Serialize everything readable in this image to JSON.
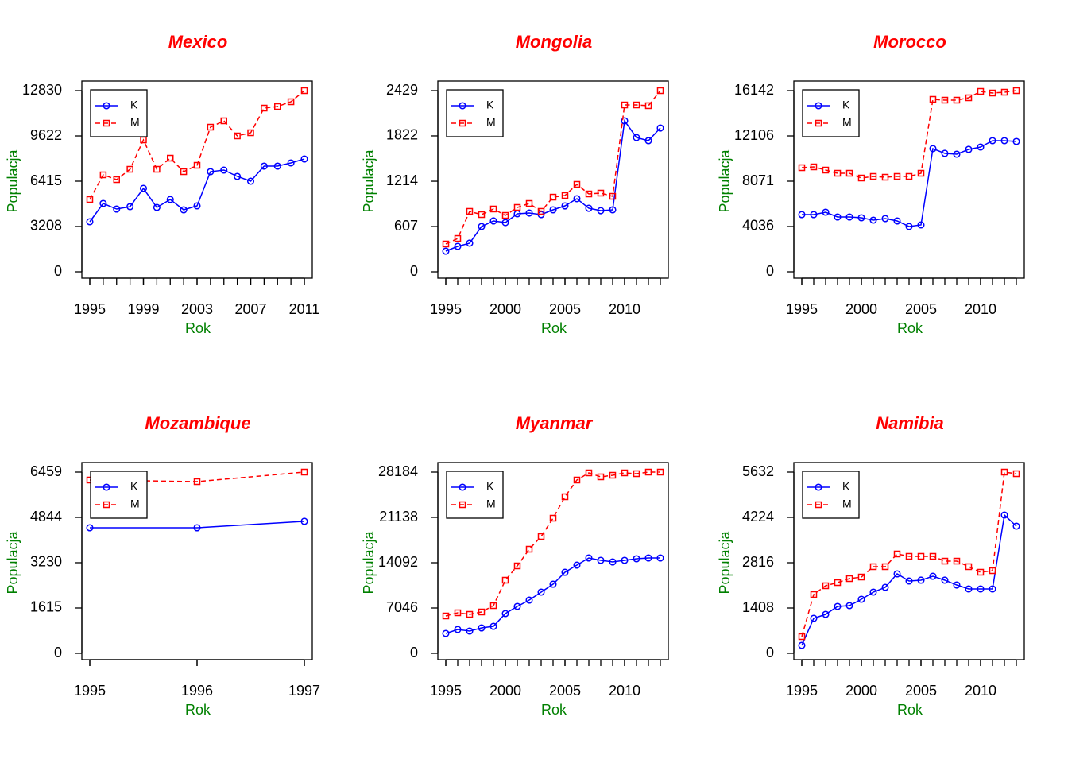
{
  "chart_data": [
    {
      "type": "line",
      "title": "Mexico",
      "xlabel": "Rok",
      "ylabel": "Populacja",
      "x": [
        1995,
        1996,
        1997,
        1998,
        1999,
        2000,
        2001,
        2002,
        2003,
        2004,
        2005,
        2006,
        2007,
        2008,
        2009,
        2010,
        2011
      ],
      "series": [
        {
          "name": "K",
          "color": "#0000ff",
          "values": [
            3545,
            4839,
            4445,
            4614,
            5908,
            4558,
            5121,
            4389,
            4670,
            7090,
            7203,
            6753,
            6415,
            7484,
            7484,
            7709,
            7990
          ]
        },
        {
          "name": "M",
          "color": "#ff0000",
          "values": [
            5121,
            6865,
            6527,
            7259,
            9341,
            7259,
            8047,
            7090,
            7540,
            10241,
            10692,
            9622,
            9847,
            11592,
            11704,
            12042,
            12830
          ]
        }
      ],
      "xlim": [
        1995,
        2011
      ],
      "xticks": [
        1995,
        1999,
        2003,
        2007,
        2011
      ],
      "ylim": [
        0,
        12830
      ],
      "yticks": [
        0,
        3208,
        6415,
        9622,
        12830
      ],
      "legend": "topleft"
    },
    {
      "type": "line",
      "title": "Mongolia",
      "xlabel": "Rok",
      "ylabel": "Populacja",
      "x": [
        1995,
        1996,
        1997,
        1998,
        1999,
        2000,
        2001,
        2002,
        2003,
        2004,
        2005,
        2006,
        2007,
        2008,
        2009,
        2010,
        2011,
        2012,
        2013
      ],
      "series": [
        {
          "name": "K",
          "color": "#0000ff",
          "values": [
            277,
            341,
            384,
            607,
            682,
            660,
            778,
            788,
            767,
            831,
            884,
            980,
            852,
            820,
            831,
            2024,
            1800,
            1758,
            1928
          ]
        },
        {
          "name": "M",
          "color": "#ff0000",
          "values": [
            373,
            447,
            810,
            767,
            842,
            756,
            863,
            916,
            810,
            1001,
            1023,
            1172,
            1044,
            1055,
            1012,
            2237,
            2237,
            2227,
            2429
          ]
        }
      ],
      "xlim": [
        1995,
        2013
      ],
      "xticks": [
        1995,
        2000,
        2005,
        2010
      ],
      "ylim": [
        0,
        2429
      ],
      "yticks": [
        0,
        607,
        1214,
        1822,
        2429
      ],
      "legend": "topleft"
    },
    {
      "type": "line",
      "title": "Morocco",
      "xlabel": "Rok",
      "ylabel": "Populacja",
      "x": [
        1995,
        1996,
        1997,
        1998,
        1999,
        2000,
        2001,
        2002,
        2003,
        2004,
        2005,
        2006,
        2007,
        2008,
        2009,
        2010,
        2011,
        2012,
        2013
      ],
      "series": [
        {
          "name": "K",
          "color": "#0000ff",
          "values": [
            5097,
            5097,
            5310,
            4885,
            4885,
            4814,
            4602,
            4743,
            4531,
            4036,
            4177,
            10974,
            10550,
            10479,
            10904,
            11116,
            11682,
            11682,
            11611
          ]
        },
        {
          "name": "M",
          "color": "#ff0000",
          "values": [
            9274,
            9345,
            9062,
            8779,
            8779,
            8354,
            8496,
            8425,
            8496,
            8496,
            8779,
            15364,
            15293,
            15293,
            15505,
            16071,
            15930,
            16000,
            16142
          ]
        }
      ],
      "xlim": [
        1995,
        2013
      ],
      "xticks": [
        1995,
        2000,
        2005,
        2010
      ],
      "ylim": [
        0,
        16142
      ],
      "yticks": [
        0,
        4036,
        8071,
        12106,
        16142
      ],
      "legend": "topleft"
    },
    {
      "type": "line",
      "title": "Mozambique",
      "xlabel": "Rok",
      "ylabel": "Populacja",
      "x": [
        1995,
        1996,
        1997
      ],
      "series": [
        {
          "name": "K",
          "color": "#0000ff",
          "values": [
            4476,
            4476,
            4703
          ]
        },
        {
          "name": "M",
          "color": "#ff0000",
          "values": [
            6176,
            6119,
            6459
          ]
        }
      ],
      "xlim": [
        1995,
        1997
      ],
      "xticks": [
        1995,
        1996,
        1997
      ],
      "ylim": [
        0,
        6459
      ],
      "yticks": [
        0,
        1615,
        3230,
        4844,
        6459
      ],
      "legend": "topleft"
    },
    {
      "type": "line",
      "title": "Myanmar",
      "xlabel": "Rok",
      "ylabel": "Populacja",
      "x": [
        1995,
        1996,
        1997,
        1998,
        1999,
        2000,
        2001,
        2002,
        2003,
        2004,
        2005,
        2006,
        2007,
        2008,
        2009,
        2010,
        2011,
        2012,
        2013
      ],
      "series": [
        {
          "name": "K",
          "color": "#0000ff",
          "values": [
            3090,
            3708,
            3461,
            3955,
            4203,
            6181,
            7293,
            8282,
            9519,
            10755,
            12609,
            13722,
            14834,
            14463,
            14216,
            14463,
            14710,
            14834,
            14834
          ]
        },
        {
          "name": "M",
          "color": "#ff0000",
          "values": [
            5810,
            6304,
            6057,
            6428,
            7417,
            11373,
            13598,
            16194,
            18172,
            21015,
            24353,
            26949,
            28061,
            27443,
            27690,
            28061,
            27937,
            28184,
            28184
          ]
        }
      ],
      "xlim": [
        1995,
        2013
      ],
      "xticks": [
        1995,
        2000,
        2005,
        2010
      ],
      "ylim": [
        0,
        28184
      ],
      "yticks": [
        0,
        7046,
        14092,
        21138,
        28184
      ],
      "legend": "topleft"
    },
    {
      "type": "line",
      "title": "Namibia",
      "xlabel": "Rok",
      "ylabel": "Populacja",
      "x": [
        1995,
        1996,
        1997,
        1998,
        1999,
        2000,
        2001,
        2002,
        2003,
        2004,
        2005,
        2006,
        2007,
        2008,
        2009,
        2010,
        2011,
        2012,
        2013
      ],
      "series": [
        {
          "name": "K",
          "color": "#0000ff",
          "values": [
            247,
            1087,
            1210,
            1457,
            1482,
            1680,
            1902,
            2050,
            2470,
            2248,
            2273,
            2396,
            2273,
            2124,
            2001,
            2001,
            2001,
            4298,
            3952
          ]
        },
        {
          "name": "M",
          "color": "#ff0000",
          "values": [
            519,
            1828,
            2100,
            2198,
            2322,
            2371,
            2693,
            2693,
            3088,
            3014,
            3014,
            3014,
            2865,
            2865,
            2693,
            2520,
            2569,
            5632,
            5582
          ]
        }
      ],
      "xlim": [
        1995,
        2013
      ],
      "xticks": [
        1995,
        2000,
        2005,
        2010
      ],
      "ylim": [
        0,
        5632
      ],
      "yticks": [
        0,
        1408,
        2816,
        4224,
        5632
      ],
      "legend": "topleft"
    }
  ]
}
